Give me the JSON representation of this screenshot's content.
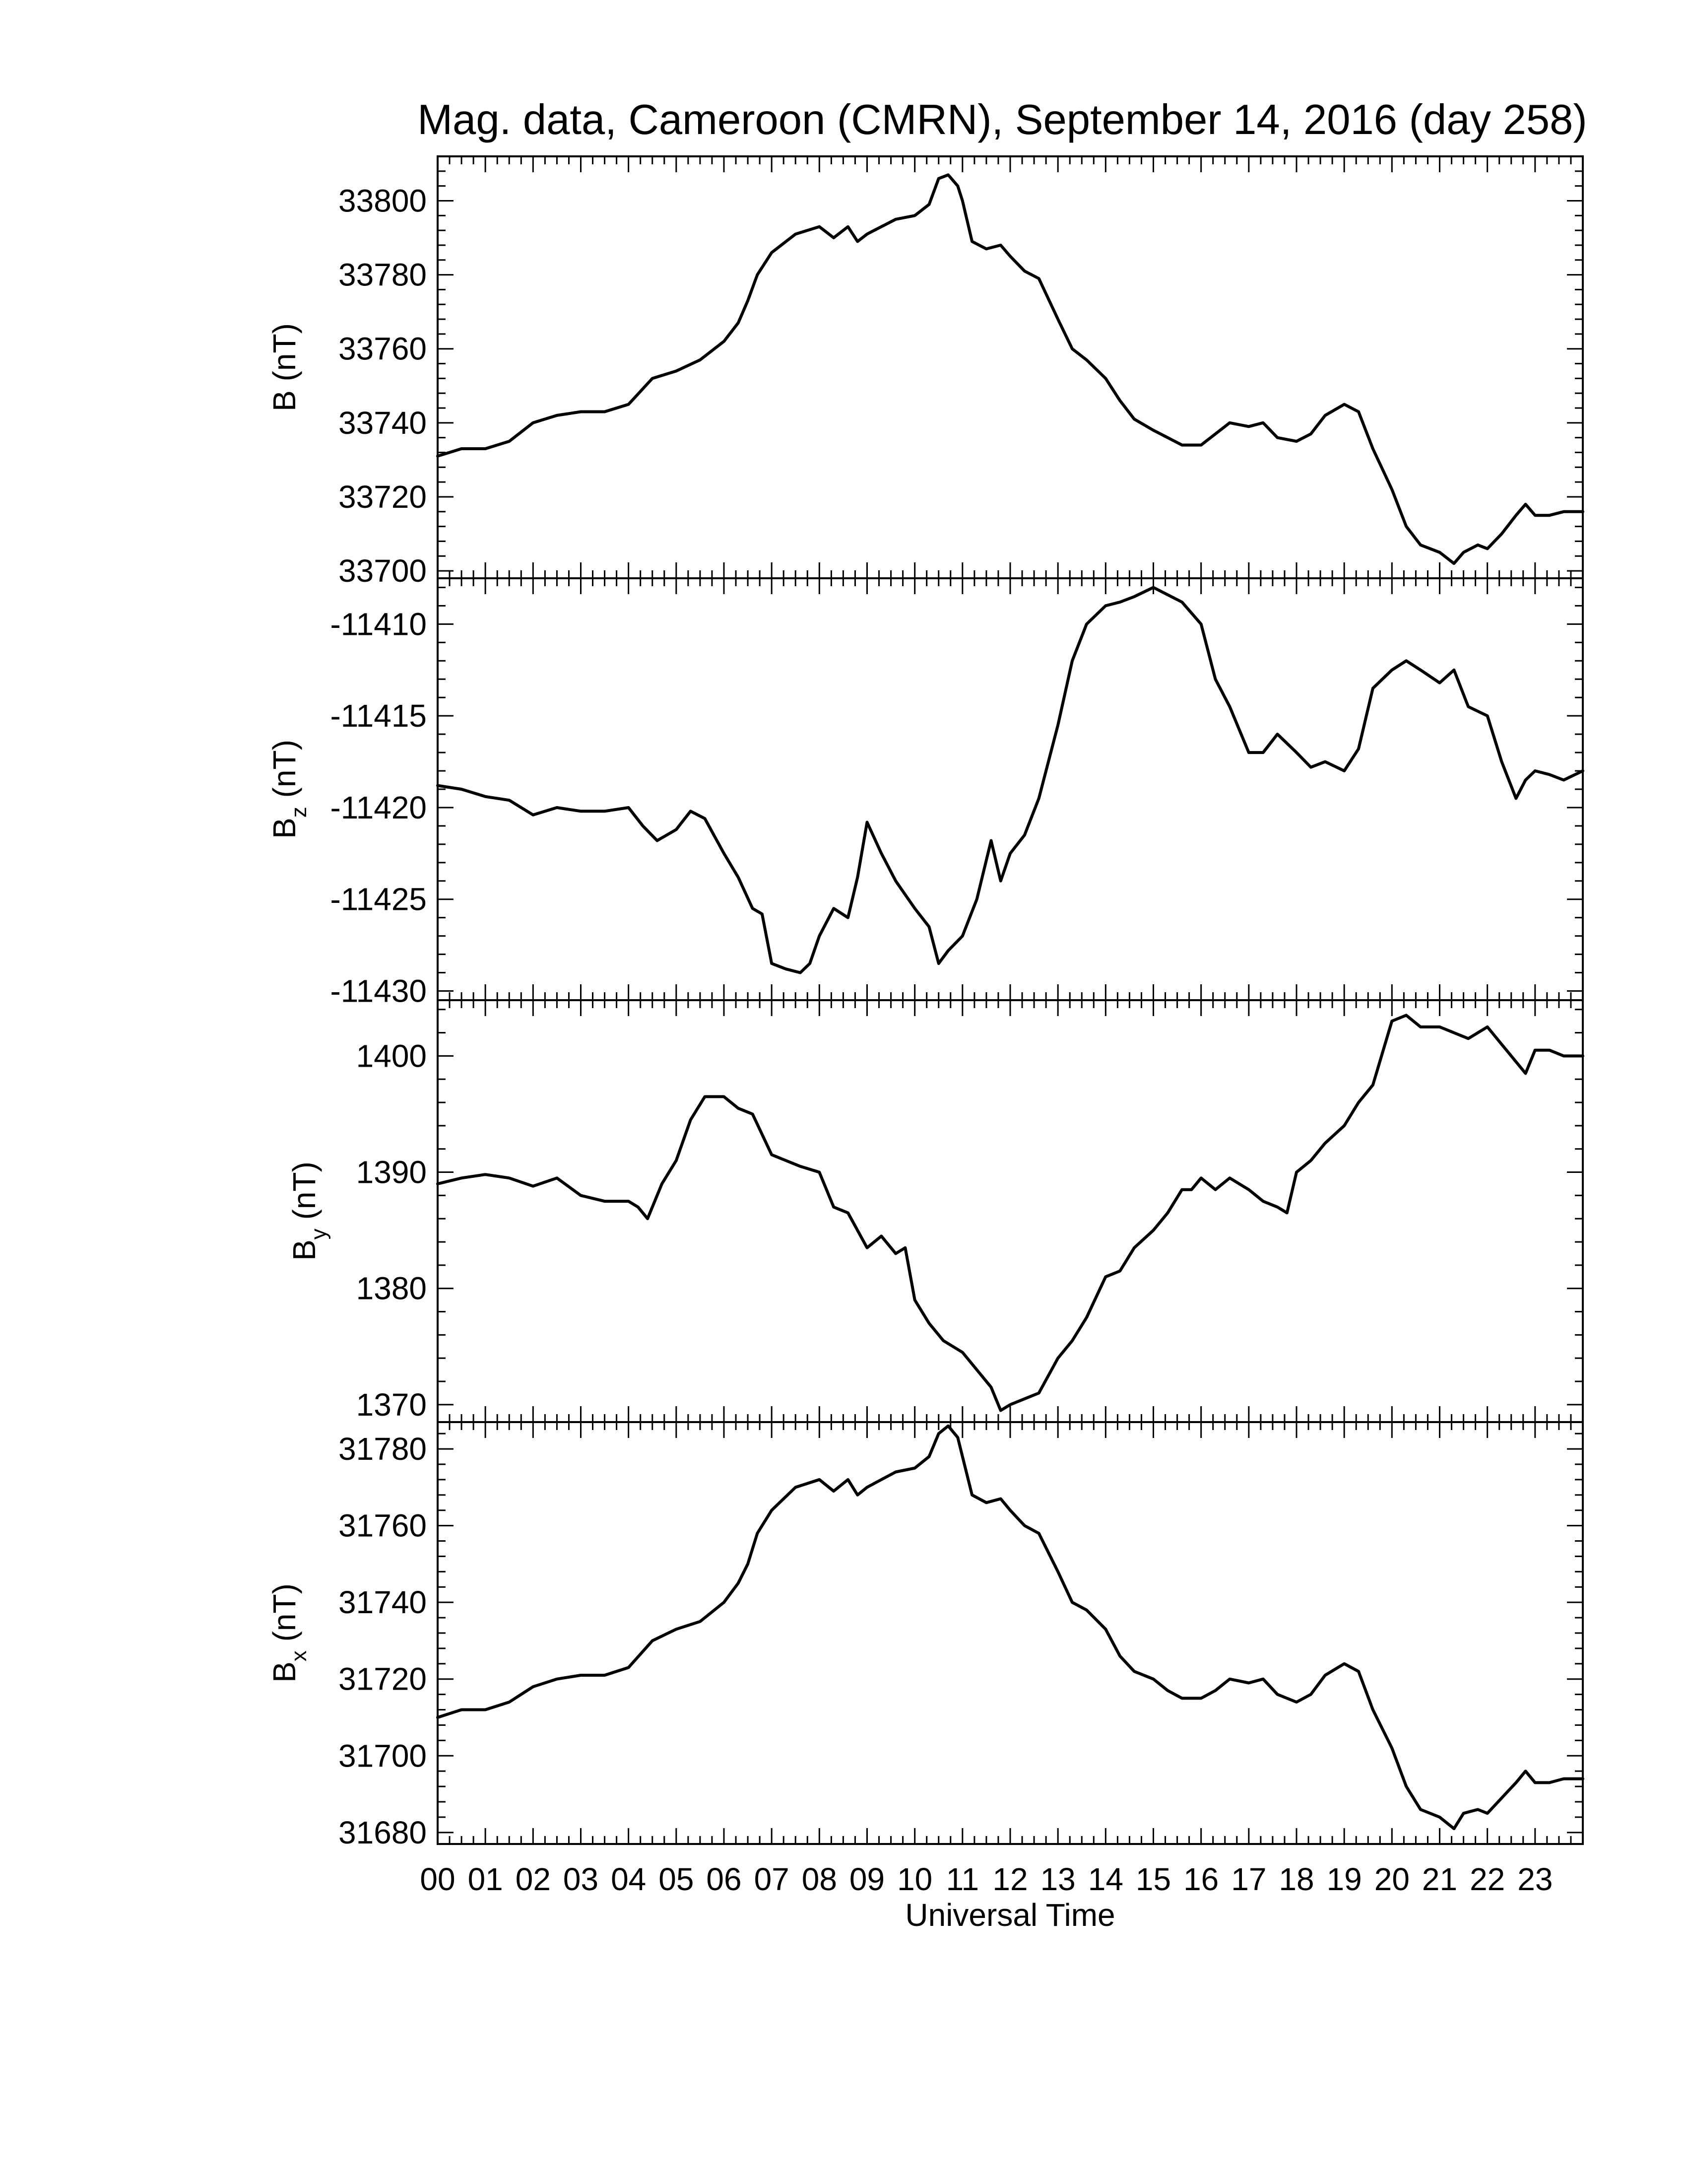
{
  "chart_data": [
    {
      "type": "line",
      "title": "Mag. data, Cameroon (CMRN), September 14, 2016 (day 258)",
      "ylabel": "B (nT)",
      "ylabel_sub": "",
      "ylim": [
        33698,
        33812
      ],
      "yticks": [
        33700,
        33720,
        33740,
        33760,
        33780,
        33800
      ],
      "xlim": [
        0,
        24
      ],
      "series": [
        {
          "x": [
            0.0,
            0.5,
            1.0,
            1.5,
            2.0,
            2.5,
            3.0,
            3.5,
            4.0,
            4.5,
            5.0,
            5.5,
            6.0,
            6.3,
            6.5,
            6.7,
            7.0,
            7.5,
            8.0,
            8.3,
            8.6,
            8.8,
            9.0,
            9.3,
            9.6,
            10.0,
            10.3,
            10.5,
            10.7,
            10.9,
            11.0,
            11.2,
            11.5,
            11.8,
            12.0,
            12.3,
            12.6,
            13.0,
            13.3,
            13.6,
            14.0,
            14.3,
            14.6,
            15.0,
            15.3,
            15.6,
            16.0,
            16.3,
            16.6,
            17.0,
            17.3,
            17.6,
            18.0,
            18.3,
            18.6,
            19.0,
            19.3,
            19.6,
            20.0,
            20.3,
            20.6,
            21.0,
            21.3,
            21.5,
            21.8,
            22.0,
            22.3,
            22.6,
            22.8,
            23.0,
            23.3,
            23.6,
            24.0
          ],
          "y": [
            33731,
            33733,
            33733,
            33735,
            33740,
            33742,
            33743,
            33743,
            33745,
            33752,
            33754,
            33757,
            33762,
            33767,
            33773,
            33780,
            33786,
            33791,
            33793,
            33790,
            33793,
            33789,
            33791,
            33793,
            33795,
            33796,
            33799,
            33806,
            33807,
            33804,
            33800,
            33789,
            33787,
            33788,
            33785,
            33781,
            33779,
            33768,
            33760,
            33757,
            33752,
            33746,
            33741,
            33738,
            33736,
            33734,
            33734,
            33737,
            33740,
            33739,
            33740,
            33736,
            33735,
            33737,
            33742,
            33745,
            33743,
            33733,
            33722,
            33712,
            33707,
            33705,
            33702,
            33705,
            33707,
            33706,
            33710,
            33715,
            33718,
            33715,
            33715,
            33716,
            33716
          ]
        }
      ]
    },
    {
      "type": "line",
      "title": "",
      "ylabel": "B",
      "ylabel_sub": "z",
      "ylabel_unit": "(nT)",
      "ylim": [
        -11430.5,
        -11407.5
      ],
      "yticks": [
        -11410,
        -11415,
        -11420,
        -11425,
        -11430
      ],
      "xlim": [
        0,
        24
      ],
      "series": [
        {
          "x": [
            0.0,
            0.5,
            1.0,
            1.5,
            2.0,
            2.5,
            3.0,
            3.5,
            4.0,
            4.3,
            4.6,
            5.0,
            5.3,
            5.6,
            6.0,
            6.3,
            6.6,
            6.8,
            7.0,
            7.3,
            7.6,
            7.8,
            8.0,
            8.3,
            8.6,
            8.8,
            9.0,
            9.3,
            9.6,
            10.0,
            10.3,
            10.5,
            10.7,
            11.0,
            11.3,
            11.6,
            11.8,
            12.0,
            12.3,
            12.6,
            13.0,
            13.3,
            13.6,
            14.0,
            14.3,
            14.6,
            15.0,
            15.3,
            15.6,
            16.0,
            16.3,
            16.6,
            17.0,
            17.3,
            17.6,
            18.0,
            18.3,
            18.6,
            19.0,
            19.3,
            19.6,
            20.0,
            20.3,
            20.6,
            21.0,
            21.3,
            21.6,
            22.0,
            22.3,
            22.6,
            22.8,
            23.0,
            23.3,
            23.6,
            24.0
          ],
          "y": [
            -11418.8,
            -11419.0,
            -11419.4,
            -11419.6,
            -11420.4,
            -11420.0,
            -11420.2,
            -11420.2,
            -11420.0,
            -11421.0,
            -11421.8,
            -11421.2,
            -11420.2,
            -11420.6,
            -11422.5,
            -11423.8,
            -11425.5,
            -11425.8,
            -11428.5,
            -11428.8,
            -11429.0,
            -11428.5,
            -11427.0,
            -11425.5,
            -11426.0,
            -11423.8,
            -11420.8,
            -11422.5,
            -11424.0,
            -11425.5,
            -11426.5,
            -11428.5,
            -11427.8,
            -11427.0,
            -11425.0,
            -11421.8,
            -11424.0,
            -11422.5,
            -11421.5,
            -11419.5,
            -11415.5,
            -11412.0,
            -11410.0,
            -11409.0,
            -11408.8,
            -11408.5,
            -11408.0,
            -11408.4,
            -11408.8,
            -11410.0,
            -11413.0,
            -11414.5,
            -11417.0,
            -11417.0,
            -11416.0,
            -11417.0,
            -11417.8,
            -11417.5,
            -11418.0,
            -11416.8,
            -11413.5,
            -11412.5,
            -11412.0,
            -11412.5,
            -11413.2,
            -11412.5,
            -11414.5,
            -11415.0,
            -11417.5,
            -11419.5,
            -11418.5,
            -11418.0,
            -11418.2,
            -11418.5,
            -11418.0
          ]
        }
      ]
    },
    {
      "type": "line",
      "title": "",
      "ylabel": "B",
      "ylabel_sub": "y",
      "ylabel_unit": "(nT)",
      "ylim": [
        1368.5,
        1404.8
      ],
      "yticks": [
        1370,
        1380,
        1390,
        1400
      ],
      "xlim": [
        0,
        24
      ],
      "series": [
        {
          "x": [
            0.0,
            0.5,
            1.0,
            1.5,
            2.0,
            2.5,
            3.0,
            3.5,
            4.0,
            4.2,
            4.4,
            4.7,
            5.0,
            5.3,
            5.6,
            5.8,
            6.0,
            6.3,
            6.6,
            7.0,
            7.3,
            7.6,
            8.0,
            8.3,
            8.6,
            9.0,
            9.3,
            9.6,
            9.8,
            10.0,
            10.3,
            10.6,
            11.0,
            11.3,
            11.6,
            11.8,
            12.0,
            12.3,
            12.6,
            13.0,
            13.3,
            13.6,
            14.0,
            14.3,
            14.6,
            15.0,
            15.3,
            15.6,
            15.8,
            16.0,
            16.3,
            16.6,
            17.0,
            17.3,
            17.6,
            17.8,
            18.0,
            18.3,
            18.6,
            19.0,
            19.3,
            19.6,
            20.0,
            20.3,
            20.6,
            21.0,
            21.3,
            21.6,
            22.0,
            22.3,
            22.6,
            22.8,
            23.0,
            23.3,
            23.6,
            24.0
          ],
          "y": [
            1389.0,
            1389.5,
            1389.8,
            1389.5,
            1388.8,
            1389.5,
            1388.0,
            1387.5,
            1387.5,
            1387.0,
            1386.0,
            1389.0,
            1391.0,
            1394.5,
            1396.5,
            1396.5,
            1396.5,
            1395.5,
            1395.0,
            1391.5,
            1391.0,
            1390.5,
            1390.0,
            1387.0,
            1386.5,
            1383.5,
            1384.5,
            1383.0,
            1383.5,
            1379.0,
            1377.0,
            1375.5,
            1374.5,
            1373.0,
            1371.5,
            1369.5,
            1370.0,
            1370.5,
            1371.0,
            1374.0,
            1375.5,
            1377.5,
            1381.0,
            1381.5,
            1383.5,
            1385.0,
            1386.5,
            1388.5,
            1388.5,
            1389.5,
            1388.5,
            1389.5,
            1388.5,
            1387.5,
            1387.0,
            1386.5,
            1390.0,
            1391.0,
            1392.5,
            1394.0,
            1396.0,
            1397.5,
            1403.0,
            1403.5,
            1402.5,
            1402.5,
            1402.0,
            1401.5,
            1402.5,
            1401.0,
            1399.5,
            1398.5,
            1400.5,
            1400.5,
            1400.0,
            1400.0
          ]
        }
      ]
    },
    {
      "type": "line",
      "title": "",
      "ylabel": "B",
      "ylabel_sub": "x",
      "ylabel_unit": "(nT)",
      "ylim": [
        31677,
        31787
      ],
      "yticks": [
        31680,
        31700,
        31720,
        31740,
        31760,
        31780
      ],
      "xlim": [
        0,
        24
      ],
      "xlabel": "Universal Time",
      "xtick_labels": [
        "00",
        "01",
        "02",
        "03",
        "04",
        "05",
        "06",
        "07",
        "08",
        "09",
        "10",
        "11",
        "12",
        "13",
        "14",
        "15",
        "16",
        "17",
        "18",
        "19",
        "20",
        "21",
        "22",
        "23"
      ],
      "series": [
        {
          "x": [
            0.0,
            0.5,
            1.0,
            1.5,
            2.0,
            2.5,
            3.0,
            3.5,
            4.0,
            4.5,
            5.0,
            5.5,
            6.0,
            6.3,
            6.5,
            6.7,
            7.0,
            7.5,
            8.0,
            8.3,
            8.6,
            8.8,
            9.0,
            9.3,
            9.6,
            10.0,
            10.3,
            10.5,
            10.7,
            10.9,
            11.0,
            11.2,
            11.5,
            11.8,
            12.0,
            12.3,
            12.6,
            13.0,
            13.3,
            13.6,
            14.0,
            14.3,
            14.6,
            15.0,
            15.3,
            15.6,
            16.0,
            16.3,
            16.6,
            17.0,
            17.3,
            17.6,
            18.0,
            18.3,
            18.6,
            19.0,
            19.3,
            19.6,
            20.0,
            20.3,
            20.6,
            21.0,
            21.3,
            21.5,
            21.8,
            22.0,
            22.3,
            22.6,
            22.8,
            23.0,
            23.3,
            23.6,
            24.0
          ],
          "y": [
            31710,
            31712,
            31712,
            31714,
            31718,
            31720,
            31721,
            31721,
            31723,
            31730,
            31733,
            31735,
            31740,
            31745,
            31750,
            31758,
            31764,
            31770,
            31772,
            31769,
            31772,
            31768,
            31770,
            31772,
            31774,
            31775,
            31778,
            31784,
            31786,
            31783,
            31778,
            31768,
            31766,
            31767,
            31764,
            31760,
            31758,
            31748,
            31740,
            31738,
            31733,
            31726,
            31722,
            31720,
            31717,
            31715,
            31715,
            31717,
            31720,
            31719,
            31720,
            31716,
            31714,
            31716,
            31721,
            31724,
            31722,
            31712,
            31702,
            31692,
            31686,
            31684,
            31681,
            31685,
            31686,
            31685,
            31689,
            31693,
            31696,
            31693,
            31693,
            31694,
            31694
          ]
        }
      ]
    }
  ]
}
